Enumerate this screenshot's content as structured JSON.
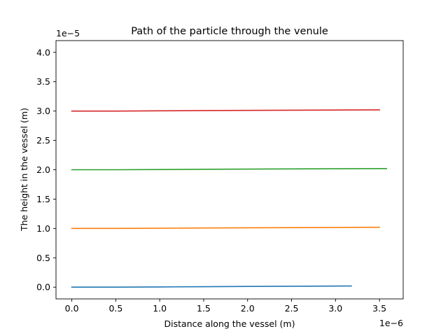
{
  "chart_data": {
    "type": "line",
    "title": "Path of the particle through the venule",
    "xlabel": "Distance along the vessel (m)",
    "ylabel": "The height in the vessel (m)",
    "x_offset_label": "1e−6",
    "y_offset_label": "1e−5",
    "xlim": [
      -0.18,
      3.77
    ],
    "ylim": [
      -0.2,
      4.2
    ],
    "x_ticks": [
      0.0,
      0.5,
      1.0,
      1.5,
      2.0,
      2.5,
      3.0,
      3.5
    ],
    "x_tick_labels": [
      "0.0",
      "0.5",
      "1.0",
      "1.5",
      "2.0",
      "2.5",
      "3.0",
      "3.5"
    ],
    "y_ticks": [
      0.0,
      0.5,
      1.0,
      1.5,
      2.0,
      2.5,
      3.0,
      3.5,
      4.0
    ],
    "y_tick_labels": [
      "0.0",
      "0.5",
      "1.0",
      "1.5",
      "2.0",
      "2.5",
      "3.0",
      "3.5",
      "4.0"
    ],
    "grid": false,
    "series": [
      {
        "color": "#1f77b4",
        "x": [
          0.0,
          0.5,
          1.0,
          1.5,
          2.0,
          2.5,
          3.18
        ],
        "y": [
          0.0,
          0.0,
          0.004,
          0.008,
          0.012,
          0.016,
          0.02
        ]
      },
      {
        "color": "#ff7f0e",
        "x": [
          0.0,
          0.5,
          1.0,
          1.5,
          2.0,
          2.5,
          3.0,
          3.5
        ],
        "y": [
          1.0,
          1.0,
          1.004,
          1.008,
          1.011,
          1.014,
          1.017,
          1.02
        ]
      },
      {
        "color": "#2ca02c",
        "x": [
          0.0,
          0.5,
          1.0,
          1.5,
          2.0,
          2.5,
          3.0,
          3.58
        ],
        "y": [
          2.0,
          2.0,
          2.004,
          2.008,
          2.011,
          2.014,
          2.017,
          2.02
        ]
      },
      {
        "color": "#d62728",
        "x": [
          0.0,
          0.5,
          1.0,
          1.5,
          2.0,
          2.5,
          3.0,
          3.5
        ],
        "y": [
          3.0,
          3.0,
          3.004,
          3.008,
          3.011,
          3.014,
          3.017,
          3.02
        ]
      }
    ]
  }
}
